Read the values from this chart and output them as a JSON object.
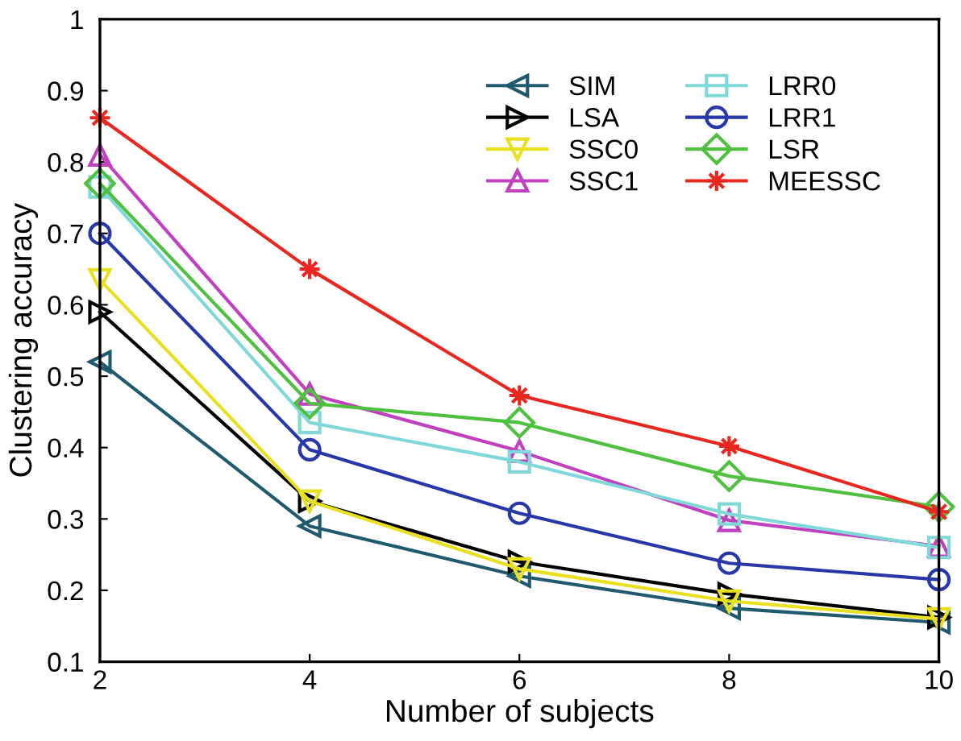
{
  "chart_data": {
    "type": "line",
    "xlabel": "Number of subjects",
    "ylabel": "Clustering accuracy",
    "x": [
      2,
      4,
      6,
      8,
      10
    ],
    "xlim": [
      2,
      10
    ],
    "xticks": [
      2,
      4,
      6,
      8,
      10
    ],
    "ylim": [
      0.1,
      1
    ],
    "yticks": [
      0.1,
      0.2,
      0.3,
      0.4,
      0.5,
      0.6,
      0.7,
      0.8,
      0.9,
      1
    ],
    "grid": false,
    "legend": "top right",
    "line_style": "solid",
    "series": [
      {
        "name": "SIM",
        "color": "#1f5a6e",
        "marker": "triangle-left",
        "values": [
          0.52,
          0.29,
          0.22,
          0.175,
          0.155
        ]
      },
      {
        "name": "LSA",
        "color": "#000000",
        "marker": "triangle-right",
        "values": [
          0.59,
          0.325,
          0.24,
          0.195,
          0.162
        ]
      },
      {
        "name": "SSC0",
        "color": "#e8e020",
        "marker": "triangle-down",
        "values": [
          0.635,
          0.325,
          0.23,
          0.185,
          0.16
        ]
      },
      {
        "name": "SSC1",
        "color": "#c040c0",
        "marker": "triangle",
        "values": [
          0.81,
          0.475,
          0.395,
          0.298,
          0.262
        ]
      },
      {
        "name": "LRR0",
        "color": "#80d8d8",
        "marker": "square",
        "values": [
          0.765,
          0.435,
          0.38,
          0.307,
          0.26
        ]
      },
      {
        "name": "LRR1",
        "color": "#2838a8",
        "marker": "circle",
        "values": [
          0.7,
          0.397,
          0.308,
          0.238,
          0.215
        ]
      },
      {
        "name": "LSR",
        "color": "#50c040",
        "marker": "diamond",
        "values": [
          0.77,
          0.462,
          0.435,
          0.36,
          0.317
        ]
      },
      {
        "name": "MEESSC",
        "color": "#e82820",
        "marker": "star",
        "values": [
          0.862,
          0.65,
          0.473,
          0.402,
          0.31
        ]
      }
    ]
  }
}
